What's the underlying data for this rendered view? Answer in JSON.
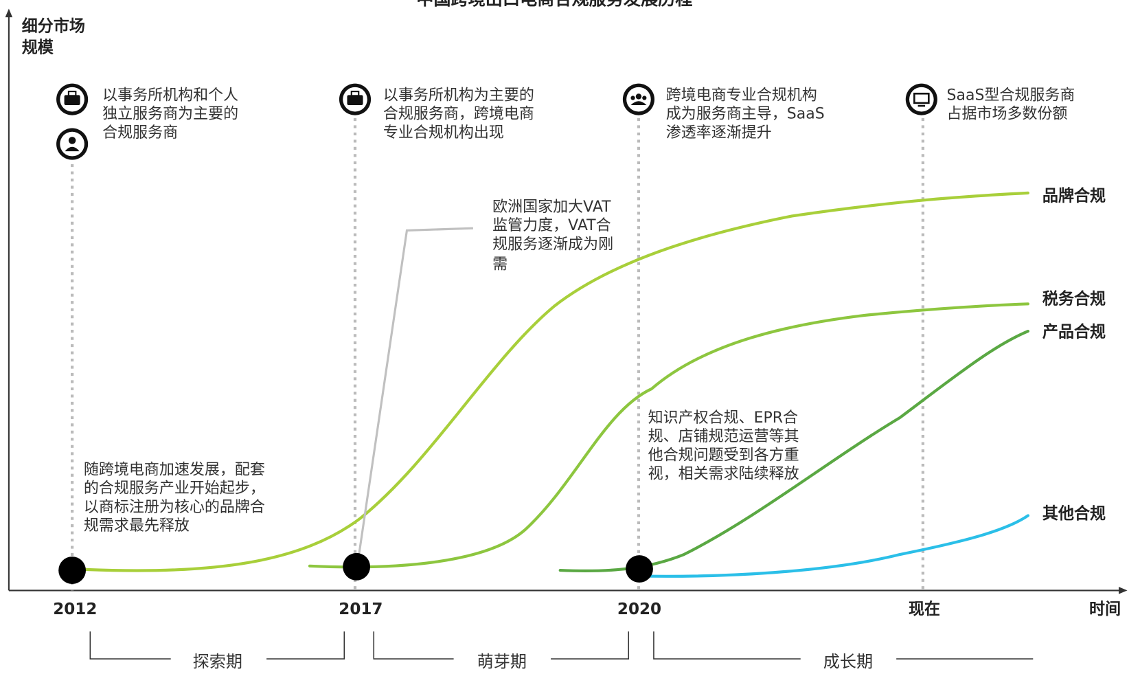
{
  "title": "中国跨境出口电商合规服务发展历程",
  "y_axis_label": [
    "细分市场",
    "规模"
  ],
  "x_axis_label": "时间",
  "timeline": [
    "2012",
    "2017",
    "2020",
    "现在"
  ],
  "milestones": [
    {
      "lines": [
        "以事务所机构和个人",
        "独立服务商为主要的",
        "合规服务商"
      ]
    },
    {
      "lines": [
        "以事务所机构为主要的",
        "合规服务商，跨境电商",
        "专业合规机构出现"
      ]
    },
    {
      "lines": [
        "跨境电商专业合规机构",
        "成为服务商主导，SaaS",
        "渗透率逐渐提升"
      ]
    },
    {
      "lines": [
        "SaaS型合规服务商",
        "占据市场多数份额"
      ]
    }
  ],
  "curves": [
    "品牌合规",
    "税务合规",
    "产品合规",
    "其他合规"
  ],
  "annotations": [
    {
      "lines": [
        "随跨境电商加速发展，配套",
        "的合规服务产业开始起步，",
        "以商标注册为核心的品牌合",
        "规需求最先释放"
      ]
    },
    {
      "lines": [
        "欧洲国家加大VAT",
        "监管力度，VAT合",
        "规服务逐渐成为刚",
        "需"
      ]
    },
    {
      "lines": [
        "知识产权合规、EPR合",
        "规、店铺规范运营等其",
        "他合规问题受到各方重",
        "视，相关需求陆续释放"
      ]
    }
  ],
  "stages": [
    "探索期",
    "萌芽期",
    "成长期"
  ]
}
